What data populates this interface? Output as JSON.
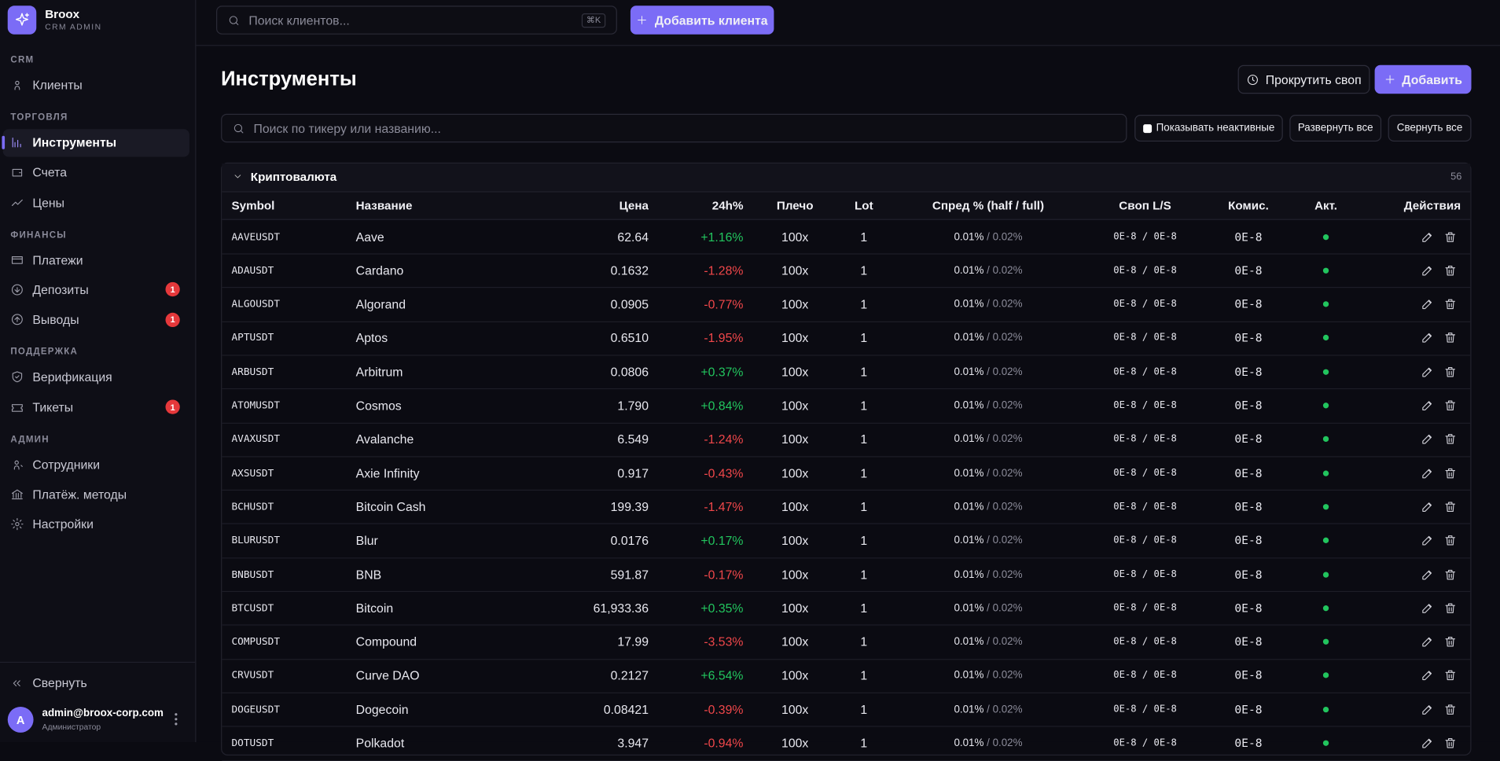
{
  "brand": {
    "name": "Broox",
    "subtitle": "CRM ADMIN"
  },
  "nav": [
    {
      "title": "CRM",
      "items": [
        {
          "label": "Клиенты"
        }
      ]
    },
    {
      "title": "ТОРГОВЛЯ",
      "items": [
        {
          "label": "Инструменты",
          "active": true
        },
        {
          "label": "Счета"
        },
        {
          "label": "Цены"
        }
      ]
    },
    {
      "title": "ФИНАНСЫ",
      "items": [
        {
          "label": "Платежи"
        },
        {
          "label": "Депозиты",
          "badge": "1"
        },
        {
          "label": "Выводы",
          "badge": "1"
        }
      ]
    },
    {
      "title": "ПОДДЕРЖКА",
      "items": [
        {
          "label": "Верификация"
        },
        {
          "label": "Тикеты",
          "badge": "1"
        }
      ]
    },
    {
      "title": "АДМИН",
      "items": [
        {
          "label": "Сотрудники"
        },
        {
          "label": "Платёж. методы"
        },
        {
          "label": "Настройки"
        }
      ]
    }
  ],
  "footer": {
    "collapse": "Свернуть",
    "avatar": "A",
    "email": "admin@broox-corp.com",
    "role": "Администратор"
  },
  "topbar": {
    "search_placeholder": "Поиск клиентов...",
    "shortcut": "⌘K",
    "add_client": "Добавить клиента"
  },
  "page": {
    "title": "Инструменты",
    "swap_button": "Прокрутить своп",
    "add_button": "Добавить",
    "search_placeholder": "Поиск по тикеру или названию...",
    "show_inactive": "Показывать неактивные",
    "expand_all": "Развернуть все",
    "collapse_all": "Свернуть все"
  },
  "group": {
    "name": "Криптовалюта",
    "count": "56",
    "columns": [
      "Symbol",
      "Название",
      "Цена",
      "24h%",
      "Плечо",
      "Lot",
      "Спред % (half / full)",
      "Своп L/S",
      "Комис.",
      "Акт.",
      "Действия"
    ],
    "rows": [
      [
        "AAVEUSDT",
        "Aave",
        "62.64",
        "+1.16%",
        "100x",
        "1",
        "0.01%",
        "0.02%",
        "0E-8 / 0E-8",
        "0E-8"
      ],
      [
        "ADAUSDT",
        "Cardano",
        "0.1632",
        "-1.28%",
        "100x",
        "1",
        "0.01%",
        "0.02%",
        "0E-8 / 0E-8",
        "0E-8"
      ],
      [
        "ALGOUSDT",
        "Algorand",
        "0.0905",
        "-0.77%",
        "100x",
        "1",
        "0.01%",
        "0.02%",
        "0E-8 / 0E-8",
        "0E-8"
      ],
      [
        "APTUSDT",
        "Aptos",
        "0.6510",
        "-1.95%",
        "100x",
        "1",
        "0.01%",
        "0.02%",
        "0E-8 / 0E-8",
        "0E-8"
      ],
      [
        "ARBUSDT",
        "Arbitrum",
        "0.0806",
        "+0.37%",
        "100x",
        "1",
        "0.01%",
        "0.02%",
        "0E-8 / 0E-8",
        "0E-8"
      ],
      [
        "ATOMUSDT",
        "Cosmos",
        "1.790",
        "+0.84%",
        "100x",
        "1",
        "0.01%",
        "0.02%",
        "0E-8 / 0E-8",
        "0E-8"
      ],
      [
        "AVAXUSDT",
        "Avalanche",
        "6.549",
        "-1.24%",
        "100x",
        "1",
        "0.01%",
        "0.02%",
        "0E-8 / 0E-8",
        "0E-8"
      ],
      [
        "AXSUSDT",
        "Axie Infinity",
        "0.917",
        "-0.43%",
        "100x",
        "1",
        "0.01%",
        "0.02%",
        "0E-8 / 0E-8",
        "0E-8"
      ],
      [
        "BCHUSDT",
        "Bitcoin Cash",
        "199.39",
        "-1.47%",
        "100x",
        "1",
        "0.01%",
        "0.02%",
        "0E-8 / 0E-8",
        "0E-8"
      ],
      [
        "BLURUSDT",
        "Blur",
        "0.0176",
        "+0.17%",
        "100x",
        "1",
        "0.01%",
        "0.02%",
        "0E-8 / 0E-8",
        "0E-8"
      ],
      [
        "BNBUSDT",
        "BNB",
        "591.87",
        "-0.17%",
        "100x",
        "1",
        "0.01%",
        "0.02%",
        "0E-8 / 0E-8",
        "0E-8"
      ],
      [
        "BTCUSDT",
        "Bitcoin",
        "61,933.36",
        "+0.35%",
        "100x",
        "1",
        "0.01%",
        "0.02%",
        "0E-8 / 0E-8",
        "0E-8"
      ],
      [
        "COMPUSDT",
        "Compound",
        "17.99",
        "-3.53%",
        "100x",
        "1",
        "0.01%",
        "0.02%",
        "0E-8 / 0E-8",
        "0E-8"
      ],
      [
        "CRVUSDT",
        "Curve DAO",
        "0.2127",
        "+6.54%",
        "100x",
        "1",
        "0.01%",
        "0.02%",
        "0E-8 / 0E-8",
        "0E-8"
      ],
      [
        "DOGEUSDT",
        "Dogecoin",
        "0.08421",
        "-0.39%",
        "100x",
        "1",
        "0.01%",
        "0.02%",
        "0E-8 / 0E-8",
        "0E-8"
      ],
      [
        "DOTUSDT",
        "Polkadot",
        "3.947",
        "-0.94%",
        "100x",
        "1",
        "0.01%",
        "0.02%",
        "0E-8 / 0E-8",
        "0E-8"
      ]
    ]
  }
}
